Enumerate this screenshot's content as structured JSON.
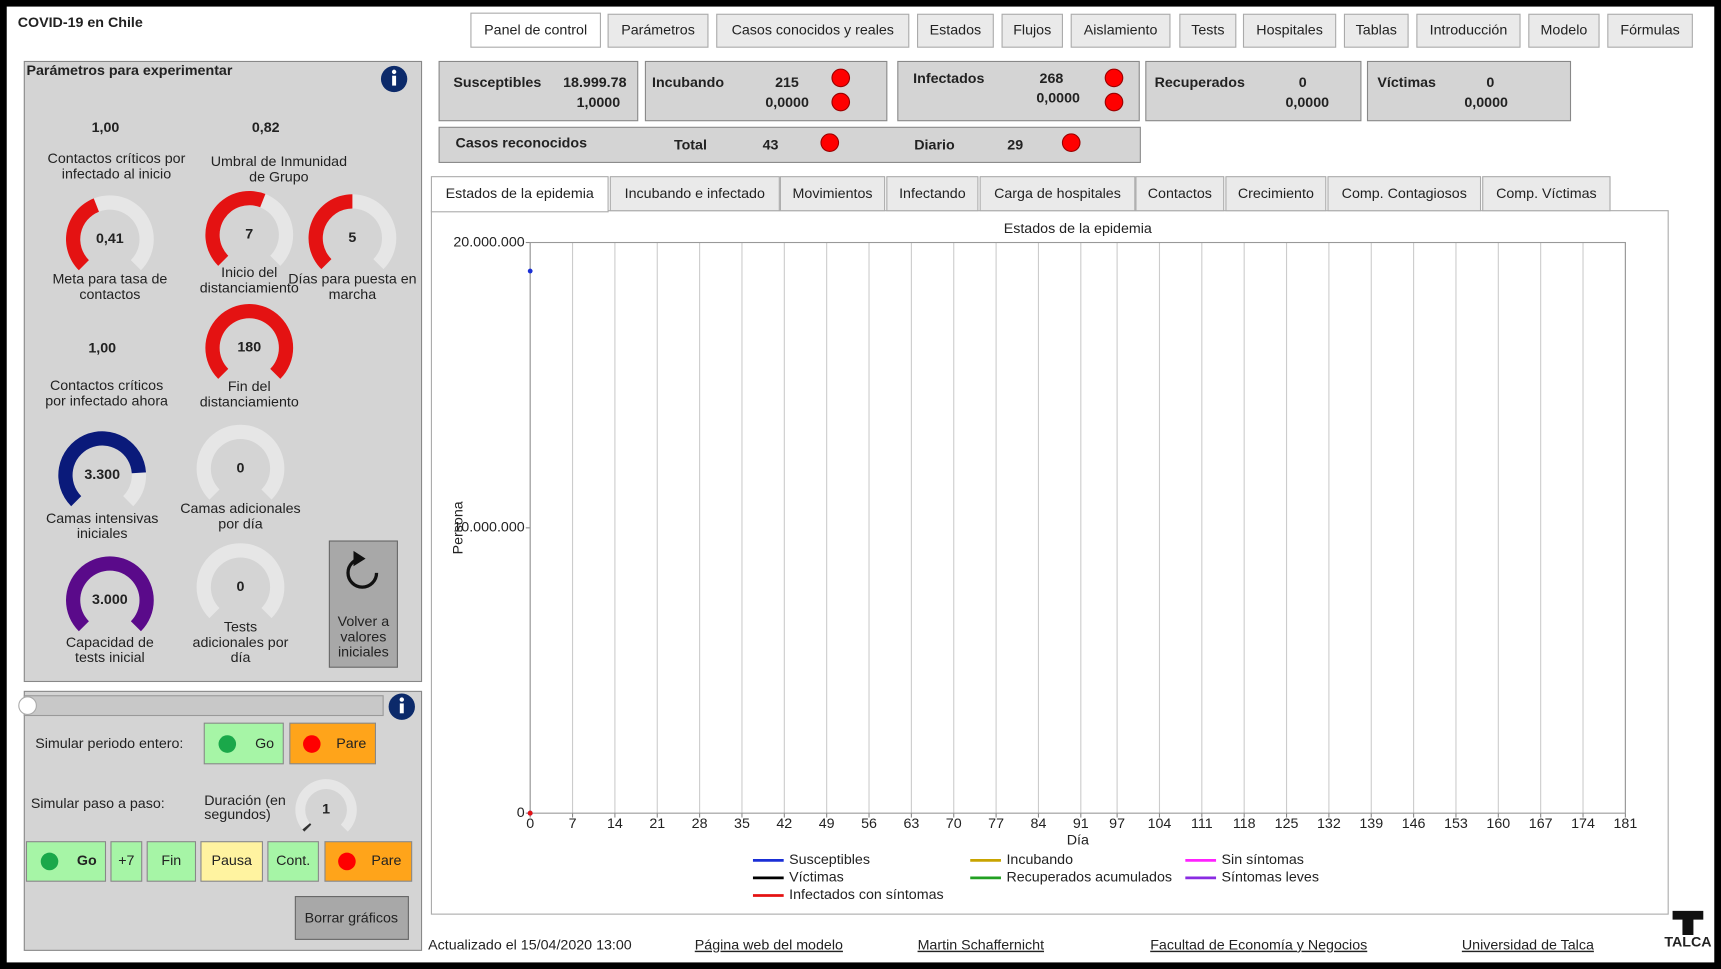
{
  "app_title": "COVID-19 en Chile",
  "nav_tabs": [
    "Panel de control",
    "Parámetros",
    "Casos conocidos y reales",
    "Estados",
    "Flujos",
    "Aislamiento",
    "Tests",
    "Hospitales",
    "Tablas",
    "Introducción",
    "Modelo",
    "Fórmulas"
  ],
  "params_panel": {
    "title": "Parámetros para experimentar",
    "items": [
      {
        "value": "1,00",
        "label": [
          "Contactos críticos por",
          "infectado al inicio"
        ]
      },
      {
        "value": "0,82",
        "label": [
          "Umbral de Inmunidad",
          "de Grupo"
        ]
      },
      {
        "value": "0,41",
        "label": [
          "Meta para tasa de",
          "contactos"
        ]
      },
      {
        "value": "7",
        "label": [
          "Inicio del",
          "distanciamiento"
        ]
      },
      {
        "value": "5",
        "label": [
          "Días para puesta en",
          "marcha"
        ]
      },
      {
        "value": "1,00",
        "label": [
          "Contactos críticos",
          "por infectado ahora"
        ]
      },
      {
        "value": "180",
        "label": [
          "Fin del",
          "distanciamiento"
        ]
      },
      {
        "value": "3.300",
        "label": [
          "Camas intensivas",
          "iniciales"
        ]
      },
      {
        "value": "0",
        "label": [
          "Camas adicionales",
          "por día"
        ]
      },
      {
        "value": "3.000",
        "label": [
          "Capacidad de",
          "tests inicial"
        ]
      },
      {
        "value": "0",
        "label": [
          "Tests",
          "adicionales por",
          "día"
        ]
      }
    ],
    "reset": [
      "Volver a",
      "valores",
      "iniciales"
    ]
  },
  "sim_panel": {
    "whole_label": "Simular periodo entero:",
    "go": "Go",
    "stop": "Pare",
    "step_label": "Simular paso a paso:",
    "duration_label": [
      "Duración (en",
      "segundos)"
    ],
    "duration": "1",
    "step_buttons": [
      "Go",
      "+7",
      "Fin",
      "Pausa",
      "Cont.",
      "Pare"
    ],
    "clear": "Borrar gráficos"
  },
  "status": {
    "boxes": [
      {
        "name": "Susceptibles",
        "value": "18.999.78",
        "ratio": "1,0000"
      },
      {
        "name": "Incubando",
        "value": "215",
        "ratio": "0,0000"
      },
      {
        "name": "Infectados",
        "value": "268",
        "ratio": "0,0000"
      },
      {
        "name": "Recuperados",
        "value": "0",
        "ratio": "0,0000"
      },
      {
        "name": "Víctimas",
        "value": "0",
        "ratio": "0,0000"
      }
    ],
    "cases": {
      "title": "Casos reconocidos",
      "total_label": "Total",
      "total": "43",
      "daily_label": "Diario",
      "daily": "29"
    }
  },
  "chart_tabs": [
    "Estados de la epidemia",
    "Incubando e infectado",
    "Movimientos",
    "Infectando",
    "Carga de hospitales",
    "Contactos",
    "Crecimiento",
    "Comp. Contagiosos",
    "Comp. Víctimas"
  ],
  "chart_data": {
    "type": "line",
    "title": "Estados de la epidemia",
    "x_label": "Día",
    "y_label": "Persona",
    "x": [
      0
    ],
    "xlim": [
      0,
      181
    ],
    "xticks": [
      0,
      7,
      14,
      21,
      28,
      35,
      42,
      49,
      56,
      63,
      70,
      77,
      84,
      91,
      97,
      104,
      111,
      118,
      125,
      132,
      139,
      146,
      153,
      160,
      167,
      174,
      181
    ],
    "ylim": [
      0,
      20000000
    ],
    "yticks": [
      0,
      {
        "value": 10000000,
        "label": "10.000.000"
      },
      {
        "value": 20000000,
        "label": "20.000.000"
      }
    ],
    "grid": true,
    "series": [
      {
        "name": "Susceptibles",
        "color": "#1a2fd6",
        "values": [
          19000000
        ]
      },
      {
        "name": "Víctimas",
        "color": "#000000",
        "values": [
          0
        ]
      },
      {
        "name": "Incubando",
        "color": "#c8a400",
        "values": [
          215
        ]
      },
      {
        "name": "Recuperados acumulados",
        "color": "#22a022",
        "values": [
          0
        ]
      },
      {
        "name": "Sin síntomas",
        "color": "#ff22ff",
        "values": [
          0
        ]
      },
      {
        "name": "Síntomas leves",
        "color": "#8a2be2",
        "values": [
          0
        ]
      },
      {
        "name": "Infectados con síntomas",
        "color": "#e41212",
        "values": [
          268
        ]
      }
    ]
  },
  "footer": {
    "updated": "Actualizado el 15/04/2020 13:00",
    "links": [
      "Página web del modelo",
      "Martin Schaffernicht",
      "Facultad de Economía y Negocios",
      "Universidad de Talca"
    ],
    "logo": "TALCA"
  }
}
